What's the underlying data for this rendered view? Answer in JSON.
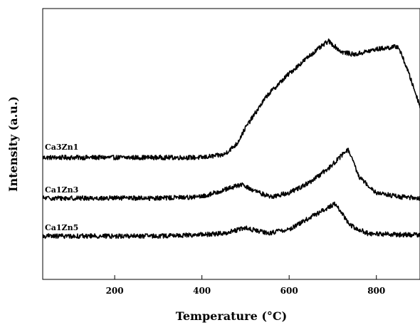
{
  "chart_data": {
    "type": "line",
    "title": "",
    "xlabel": "Temperature (°C)",
    "ylabel": "Intensity (a.u.)",
    "xlim": [
      35,
      900
    ],
    "ylim": [
      0,
      100
    ],
    "xticks": [
      200,
      400,
      600,
      800
    ],
    "xtick_labels": [
      "200",
      "400",
      "600",
      "800"
    ],
    "yticks": [],
    "grid": false,
    "legend": "none",
    "line_color": "#000000",
    "series": [
      {
        "name": "Ca3Zn1",
        "x": [
          35,
          100,
          200,
          300,
          400,
          450,
          480,
          500,
          550,
          600,
          650,
          690,
          720,
          750,
          800,
          850,
          870,
          900
        ],
        "y": [
          45.0,
          45.0,
          45.0,
          45.0,
          45.0,
          46.0,
          50.0,
          56.0,
          68.0,
          76.0,
          83.0,
          88.0,
          84.0,
          83.0,
          85.0,
          86.0,
          78.0,
          64.0
        ]
      },
      {
        "name": "Ca1Zn3",
        "x": [
          35,
          100,
          200,
          300,
          400,
          450,
          490,
          530,
          560,
          600,
          650,
          690,
          735,
          760,
          800,
          850,
          900
        ],
        "y": [
          30.0,
          30.0,
          30.0,
          30.0,
          30.5,
          33.0,
          35.0,
          32.0,
          30.5,
          32.0,
          36.0,
          41.0,
          48.0,
          38.0,
          32.0,
          30.5,
          30.0
        ]
      },
      {
        "name": "Ca1Zn5",
        "x": [
          35,
          100,
          200,
          300,
          400,
          450,
          500,
          550,
          600,
          650,
          705,
          740,
          780,
          850,
          900
        ],
        "y": [
          16.0,
          16.0,
          16.0,
          16.0,
          16.5,
          17.0,
          19.0,
          17.0,
          18.5,
          23.0,
          28.0,
          20.0,
          17.0,
          16.5,
          16.5
        ]
      }
    ]
  },
  "series_labels": {
    "ca3zn1": "Ca3Zn1",
    "ca1zn3": "Ca1Zn3",
    "ca1zn5": "Ca1Zn5"
  }
}
